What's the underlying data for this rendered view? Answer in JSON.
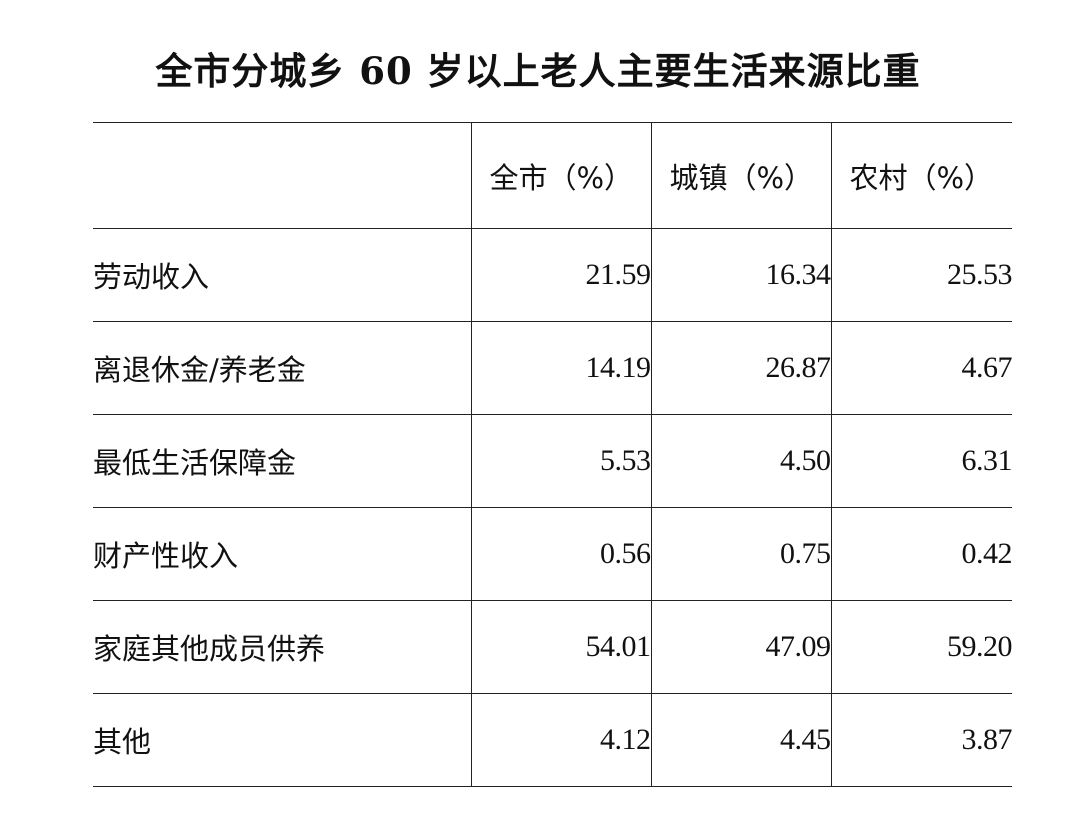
{
  "chart_data": {
    "type": "table",
    "title": "全市分城乡 60 岁以上老人主要生活来源比重",
    "columns": [
      "",
      "全市（%）",
      "城镇（%）",
      "农村（%）"
    ],
    "rows": [
      {
        "label": "劳动收入",
        "values": [
          "21.59",
          "16.34",
          "25.53"
        ]
      },
      {
        "label": "离退休金/养老金",
        "values": [
          "14.19",
          "26.87",
          "4.67"
        ]
      },
      {
        "label": "最低生活保障金",
        "values": [
          "5.53",
          "4.50",
          "6.31"
        ]
      },
      {
        "label": "财产性收入",
        "values": [
          "0.56",
          "0.75",
          "0.42"
        ]
      },
      {
        "label": "家庭其他成员供养",
        "values": [
          "54.01",
          "47.09",
          "59.20"
        ]
      },
      {
        "label": "其他",
        "values": [
          "4.12",
          "4.45",
          "3.87"
        ]
      }
    ]
  }
}
